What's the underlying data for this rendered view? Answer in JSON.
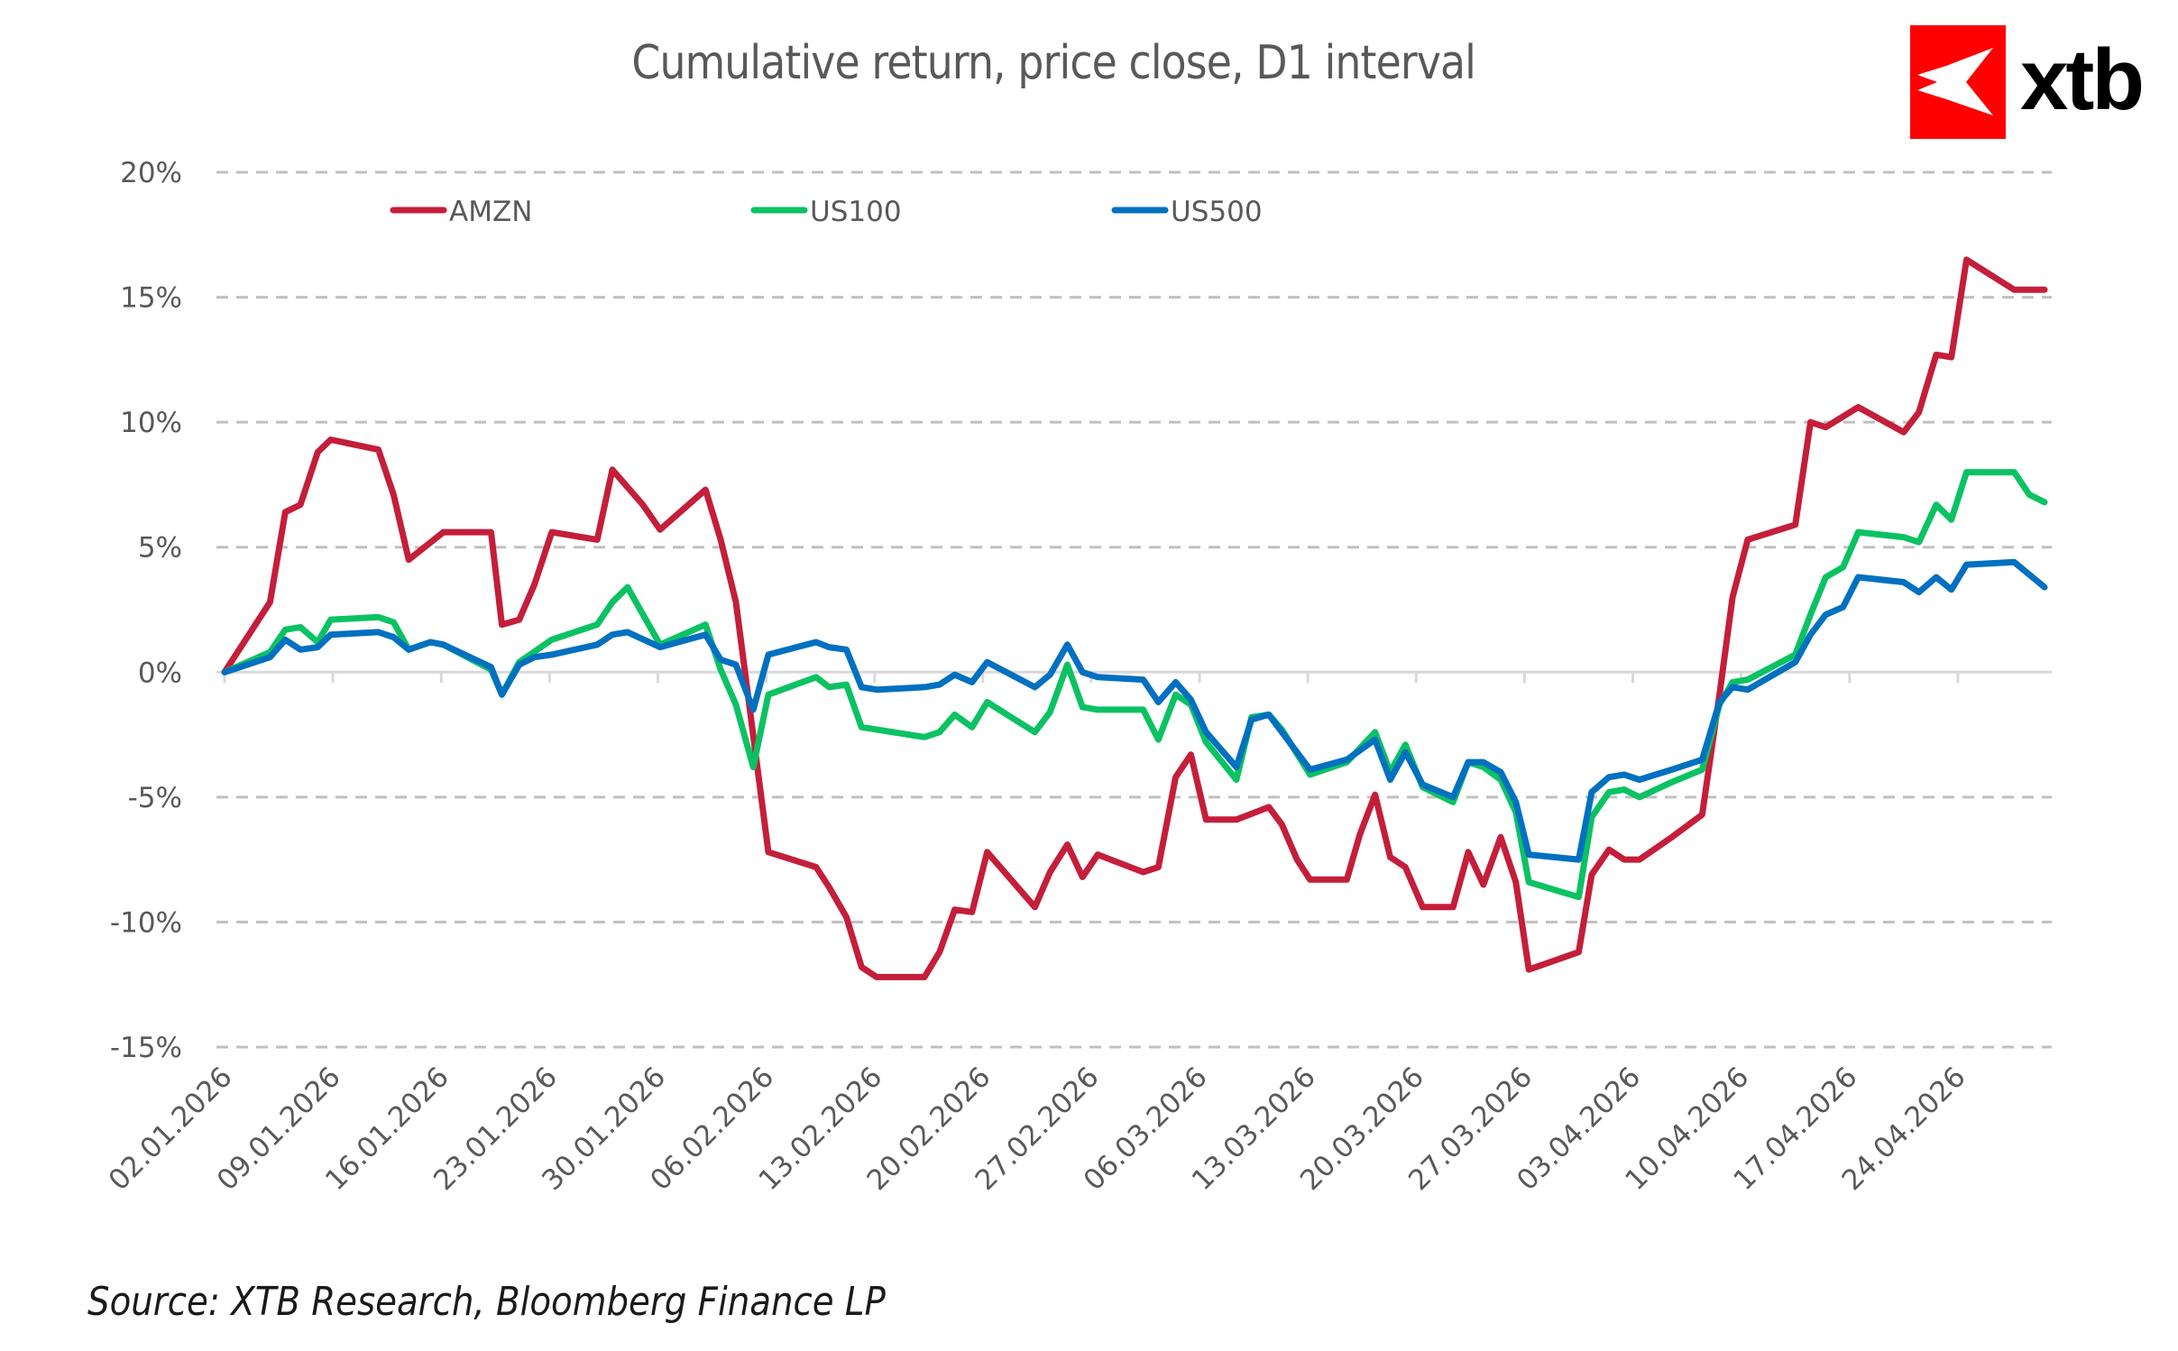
{
  "header": {
    "title": "Cumulative return, price close, D1 interval",
    "logo_text": "xtb",
    "logo_color": "#ff0000"
  },
  "footer": {
    "source": "Source: XTB Research, Bloomberg Finance LP"
  },
  "chart_data": {
    "type": "line",
    "title": "Cumulative return, price close, D1 interval",
    "xlabel": "",
    "ylabel": "",
    "x_unit": "trading days since 02.01.2026",
    "xlim": [
      0,
      84
    ],
    "ylim": [
      -15,
      20
    ],
    "yticks": [
      20,
      15,
      10,
      5,
      0,
      -5,
      -10,
      -15
    ],
    "ytick_labels": [
      "20%",
      "15%",
      "10%",
      "5%",
      "0%",
      "-5%",
      "-10%",
      "-15%"
    ],
    "xticks": [
      0,
      5,
      10,
      15,
      20,
      25,
      30,
      35,
      40,
      45,
      50,
      55,
      60,
      65,
      70,
      75,
      80
    ],
    "xtick_labels": [
      "02.01.2026",
      "09.01.2026",
      "16.01.2026",
      "23.01.2026",
      "30.01.2026",
      "06.02.2026",
      "13.02.2026",
      "20.02.2026",
      "27.02.2026",
      "06.03.2026",
      "13.03.2026",
      "20.03.2026",
      "27.03.2026",
      "03.04.2026",
      "10.04.2026",
      "17.04.2026",
      "24.04.2026"
    ],
    "grid": "horizontal dashed",
    "legend": "top-left, horizontal",
    "series": [
      {
        "name": "AMZN",
        "color": "#c41e3a",
        "points": [
          [
            0,
            0
          ],
          [
            2.1,
            2.8
          ],
          [
            2.8,
            6.4
          ],
          [
            3.5,
            6.7
          ],
          [
            4.3,
            8.8
          ],
          [
            4.9,
            9.3
          ],
          [
            7.1,
            8.9
          ],
          [
            7.8,
            7.1
          ],
          [
            8.5,
            4.5
          ],
          [
            10.1,
            5.6
          ],
          [
            12.3,
            5.6
          ],
          [
            12.8,
            1.9
          ],
          [
            13.6,
            2.1
          ],
          [
            14.3,
            3.5
          ],
          [
            15.1,
            5.6
          ],
          [
            17.2,
            5.3
          ],
          [
            17.9,
            8.1
          ],
          [
            18.6,
            7.4
          ],
          [
            19.3,
            6.7
          ],
          [
            20.1,
            5.7
          ],
          [
            22.2,
            7.3
          ],
          [
            22.9,
            5.3
          ],
          [
            23.6,
            2.8
          ],
          [
            25.1,
            -7.2
          ],
          [
            27.3,
            -7.8
          ],
          [
            27.9,
            -8.6
          ],
          [
            28.7,
            -9.8
          ],
          [
            29.4,
            -11.8
          ],
          [
            30.1,
            -12.2
          ],
          [
            32.3,
            -12.2
          ],
          [
            33.0,
            -11.2
          ],
          [
            33.7,
            -9.5
          ],
          [
            34.5,
            -9.6
          ],
          [
            35.2,
            -7.2
          ],
          [
            37.4,
            -9.4
          ],
          [
            38.1,
            -8.0
          ],
          [
            38.9,
            -6.9
          ],
          [
            39.6,
            -8.2
          ],
          [
            40.3,
            -7.3
          ],
          [
            42.4,
            -8.0
          ],
          [
            43.1,
            -7.8
          ],
          [
            43.9,
            -4.2
          ],
          [
            44.6,
            -3.3
          ],
          [
            45.3,
            -5.9
          ],
          [
            46.7,
            -5.9
          ],
          [
            48.2,
            -5.4
          ],
          [
            48.8,
            -6.1
          ],
          [
            49.5,
            -7.5
          ],
          [
            50.1,
            -8.3
          ],
          [
            51.8,
            -8.3
          ],
          [
            52.4,
            -6.5
          ],
          [
            53.1,
            -4.9
          ],
          [
            53.8,
            -7.4
          ],
          [
            54.5,
            -7.8
          ],
          [
            55.3,
            -9.4
          ],
          [
            56.7,
            -9.4
          ],
          [
            57.4,
            -7.2
          ],
          [
            58.1,
            -8.5
          ],
          [
            58.9,
            -6.6
          ],
          [
            59.6,
            -8.4
          ],
          [
            60.2,
            -11.9
          ],
          [
            62.5,
            -11.2
          ],
          [
            63.1,
            -8.1
          ],
          [
            63.9,
            -7.1
          ],
          [
            64.6,
            -7.5
          ],
          [
            65.3,
            -7.5
          ],
          [
            66.8,
            -6.6
          ],
          [
            68.2,
            -5.7
          ],
          [
            69.0,
            -0.9
          ],
          [
            69.6,
            3.0
          ],
          [
            70.3,
            5.3
          ],
          [
            72.5,
            5.9
          ],
          [
            73.2,
            10.0
          ],
          [
            73.9,
            9.8
          ],
          [
            75.4,
            10.6
          ],
          [
            77.5,
            9.6
          ],
          [
            78.2,
            10.4
          ],
          [
            79.0,
            12.7
          ],
          [
            79.7,
            12.6
          ],
          [
            80.4,
            16.5
          ],
          [
            82.6,
            15.3
          ],
          [
            84.0,
            15.3
          ]
        ]
      },
      {
        "name": "US100",
        "color": "#0bc263",
        "points": [
          [
            0,
            0
          ],
          [
            2.1,
            0.8
          ],
          [
            2.8,
            1.7
          ],
          [
            3.5,
            1.8
          ],
          [
            4.3,
            1.2
          ],
          [
            4.9,
            2.1
          ],
          [
            7.1,
            2.2
          ],
          [
            7.8,
            2.0
          ],
          [
            8.5,
            0.9
          ],
          [
            9.5,
            1.2
          ],
          [
            10.1,
            1.1
          ],
          [
            12.3,
            0.1
          ],
          [
            12.8,
            -0.9
          ],
          [
            13.6,
            0.4
          ],
          [
            15.1,
            1.3
          ],
          [
            17.2,
            1.9
          ],
          [
            17.9,
            2.8
          ],
          [
            18.6,
            3.4
          ],
          [
            20.1,
            1.1
          ],
          [
            22.2,
            1.9
          ],
          [
            22.9,
            0.1
          ],
          [
            23.6,
            -1.3
          ],
          [
            24.4,
            -3.8
          ],
          [
            25.1,
            -0.9
          ],
          [
            27.3,
            -0.2
          ],
          [
            27.9,
            -0.6
          ],
          [
            28.7,
            -0.5
          ],
          [
            29.4,
            -2.2
          ],
          [
            32.3,
            -2.6
          ],
          [
            33.0,
            -2.4
          ],
          [
            33.7,
            -1.7
          ],
          [
            34.5,
            -2.2
          ],
          [
            35.2,
            -1.2
          ],
          [
            37.4,
            -2.4
          ],
          [
            38.1,
            -1.6
          ],
          [
            38.9,
            0.3
          ],
          [
            39.6,
            -1.4
          ],
          [
            40.3,
            -1.5
          ],
          [
            42.4,
            -1.5
          ],
          [
            43.1,
            -2.7
          ],
          [
            43.9,
            -0.9
          ],
          [
            44.6,
            -1.3
          ],
          [
            45.3,
            -2.8
          ],
          [
            46.7,
            -4.3
          ],
          [
            47.4,
            -1.8
          ],
          [
            48.2,
            -1.7
          ],
          [
            48.8,
            -2.3
          ],
          [
            50.1,
            -4.1
          ],
          [
            51.8,
            -3.6
          ],
          [
            53.1,
            -2.4
          ],
          [
            53.8,
            -4.0
          ],
          [
            54.5,
            -2.9
          ],
          [
            55.3,
            -4.6
          ],
          [
            56.7,
            -5.2
          ],
          [
            57.4,
            -3.6
          ],
          [
            58.1,
            -3.8
          ],
          [
            58.9,
            -4.3
          ],
          [
            59.6,
            -5.6
          ],
          [
            60.2,
            -8.4
          ],
          [
            62.5,
            -9.0
          ],
          [
            63.1,
            -5.8
          ],
          [
            63.9,
            -4.8
          ],
          [
            64.6,
            -4.7
          ],
          [
            65.3,
            -5.0
          ],
          [
            66.8,
            -4.4
          ],
          [
            68.2,
            -3.9
          ],
          [
            69.0,
            -1.3
          ],
          [
            69.6,
            -0.4
          ],
          [
            70.3,
            -0.3
          ],
          [
            72.5,
            0.7
          ],
          [
            73.2,
            2.3
          ],
          [
            73.9,
            3.8
          ],
          [
            74.7,
            4.2
          ],
          [
            75.4,
            5.6
          ],
          [
            77.5,
            5.4
          ],
          [
            78.2,
            5.2
          ],
          [
            79.0,
            6.7
          ],
          [
            79.7,
            6.1
          ],
          [
            80.4,
            8.0
          ],
          [
            82.6,
            8.0
          ],
          [
            83.3,
            7.1
          ],
          [
            84.0,
            6.8
          ]
        ]
      },
      {
        "name": "US500",
        "color": "#0070c0",
        "points": [
          [
            0,
            0
          ],
          [
            2.1,
            0.6
          ],
          [
            2.8,
            1.3
          ],
          [
            3.5,
            0.9
          ],
          [
            4.3,
            1.0
          ],
          [
            4.9,
            1.5
          ],
          [
            7.1,
            1.6
          ],
          [
            7.8,
            1.4
          ],
          [
            8.5,
            0.9
          ],
          [
            9.5,
            1.2
          ],
          [
            10.1,
            1.1
          ],
          [
            12.3,
            0.2
          ],
          [
            12.8,
            -0.9
          ],
          [
            13.6,
            0.3
          ],
          [
            14.3,
            0.6
          ],
          [
            15.1,
            0.7
          ],
          [
            17.2,
            1.1
          ],
          [
            17.9,
            1.5
          ],
          [
            18.6,
            1.6
          ],
          [
            20.1,
            1.0
          ],
          [
            22.2,
            1.5
          ],
          [
            22.9,
            0.5
          ],
          [
            23.6,
            0.3
          ],
          [
            24.4,
            -1.5
          ],
          [
            25.1,
            0.7
          ],
          [
            27.3,
            1.2
          ],
          [
            27.9,
            1.0
          ],
          [
            28.7,
            0.9
          ],
          [
            29.4,
            -0.6
          ],
          [
            30.1,
            -0.7
          ],
          [
            32.3,
            -0.6
          ],
          [
            33.0,
            -0.5
          ],
          [
            33.7,
            -0.1
          ],
          [
            34.5,
            -0.4
          ],
          [
            35.2,
            0.4
          ],
          [
            37.4,
            -0.6
          ],
          [
            38.1,
            -0.1
          ],
          [
            38.9,
            1.1
          ],
          [
            39.6,
            0.0
          ],
          [
            40.3,
            -0.2
          ],
          [
            42.4,
            -0.3
          ],
          [
            43.1,
            -1.2
          ],
          [
            43.9,
            -0.4
          ],
          [
            44.6,
            -1.1
          ],
          [
            45.3,
            -2.4
          ],
          [
            46.7,
            -3.8
          ],
          [
            47.4,
            -1.9
          ],
          [
            48.2,
            -1.7
          ],
          [
            48.8,
            -2.4
          ],
          [
            50.1,
            -3.9
          ],
          [
            51.8,
            -3.5
          ],
          [
            53.1,
            -2.7
          ],
          [
            53.8,
            -4.3
          ],
          [
            54.5,
            -3.2
          ],
          [
            55.3,
            -4.5
          ],
          [
            56.7,
            -5.0
          ],
          [
            57.4,
            -3.6
          ],
          [
            58.1,
            -3.6
          ],
          [
            58.9,
            -4.0
          ],
          [
            59.6,
            -5.2
          ],
          [
            60.2,
            -7.3
          ],
          [
            62.5,
            -7.5
          ],
          [
            63.1,
            -4.8
          ],
          [
            63.9,
            -4.2
          ],
          [
            64.6,
            -4.1
          ],
          [
            65.3,
            -4.3
          ],
          [
            66.8,
            -3.9
          ],
          [
            68.2,
            -3.5
          ],
          [
            69.0,
            -1.2
          ],
          [
            69.6,
            -0.6
          ],
          [
            70.3,
            -0.7
          ],
          [
            72.5,
            0.4
          ],
          [
            73.2,
            1.5
          ],
          [
            73.9,
            2.3
          ],
          [
            74.7,
            2.6
          ],
          [
            75.4,
            3.8
          ],
          [
            77.5,
            3.6
          ],
          [
            78.2,
            3.2
          ],
          [
            79.0,
            3.8
          ],
          [
            79.7,
            3.3
          ],
          [
            80.4,
            4.3
          ],
          [
            82.6,
            4.4
          ],
          [
            84.0,
            3.4
          ]
        ]
      }
    ]
  }
}
